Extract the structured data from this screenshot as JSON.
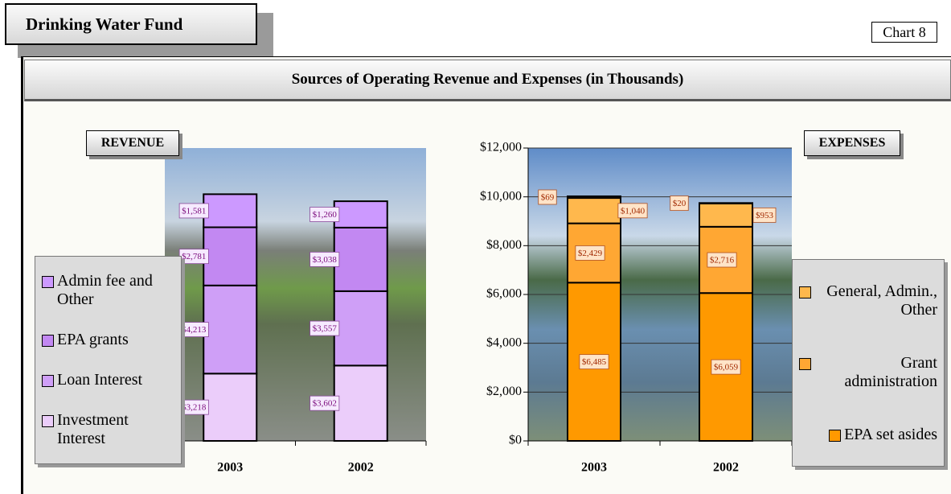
{
  "header": {
    "title": "Drinking Water Fund",
    "chart_number": "Chart 8",
    "subtitle": "Sources of Operating Revenue and Expenses (in Thousands)"
  },
  "chart_data": [
    {
      "type": "bar",
      "stacked": true,
      "title": "REVENUE",
      "categories": [
        "2003",
        "2002"
      ],
      "series": [
        {
          "name": "Investment Interest",
          "color": "#ebcdfa",
          "values": [
            3218,
            3602
          ],
          "value_labels": [
            "$3,218",
            "$3,602"
          ]
        },
        {
          "name": "Loan Interest",
          "color": "#cf9ff7",
          "values": [
            4213,
            3557
          ],
          "value_labels": [
            "$4,213",
            "$3,557"
          ]
        },
        {
          "name": "EPA grants",
          "color": "#c288f2",
          "values": [
            2781,
            3038
          ],
          "value_labels": [
            "$2,781",
            "$3,038"
          ]
        },
        {
          "name": "Admin fee and Other",
          "color": "#cc99ff",
          "values": [
            1581,
            1260
          ],
          "value_labels": [
            "$1,581",
            "$1,260"
          ]
        }
      ],
      "ylim": [
        0,
        14000
      ],
      "grid": false
    },
    {
      "type": "bar",
      "stacked": true,
      "title": "EXPENSES",
      "categories": [
        "2003",
        "2002"
      ],
      "series": [
        {
          "name": "EPA set asides",
          "color": "#ff9900",
          "values": [
            6485,
            6059
          ],
          "value_labels": [
            "$6,485",
            "$6,059"
          ]
        },
        {
          "name": "Grant administration",
          "color": "#ffa733",
          "values": [
            2429,
            2716
          ],
          "value_labels": [
            "$2,429",
            "$2,716"
          ]
        },
        {
          "name": "General, Admin., Other",
          "color": "#ffb84d",
          "values": [
            1040,
            953
          ],
          "value_labels": [
            "$1,040",
            "$953"
          ]
        },
        {
          "color": "#ff9900",
          "values": [
            69,
            20
          ],
          "value_labels": [
            "$69",
            "$20"
          ]
        }
      ],
      "ylim": [
        0,
        12000
      ],
      "yticks": [
        {
          "value": 0,
          "label": "$0"
        },
        {
          "value": 2000,
          "label": "$2,000"
        },
        {
          "value": 4000,
          "label": "$4,000"
        },
        {
          "value": 6000,
          "label": "$6,000"
        },
        {
          "value": 8000,
          "label": "$8,000"
        },
        {
          "value": 10000,
          "label": "$10,000"
        },
        {
          "value": 12000,
          "label": "$12,000"
        }
      ],
      "grid": true
    }
  ]
}
